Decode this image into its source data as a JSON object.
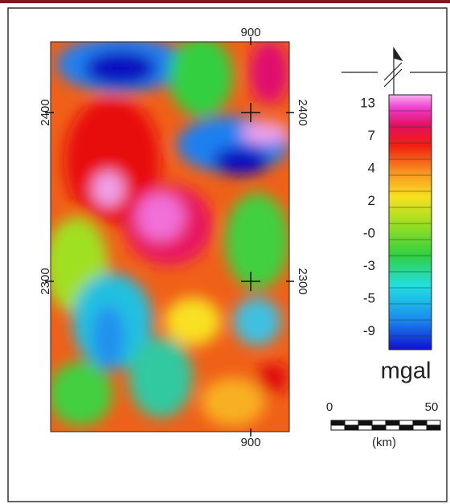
{
  "map": {
    "frame_ticks": {
      "top": "900",
      "bottom": "900",
      "left_upper": "2400",
      "left_lower": "2300",
      "right_upper": "2400",
      "right_lower": "2300"
    },
    "colorbar": {
      "labels": [
        "13",
        "7",
        "4",
        "2",
        "-0",
        "-3",
        "-5",
        "-9"
      ],
      "unit": "mgal"
    },
    "scale_bar": {
      "start": "0",
      "end": "50",
      "unit": "(km)"
    }
  }
}
